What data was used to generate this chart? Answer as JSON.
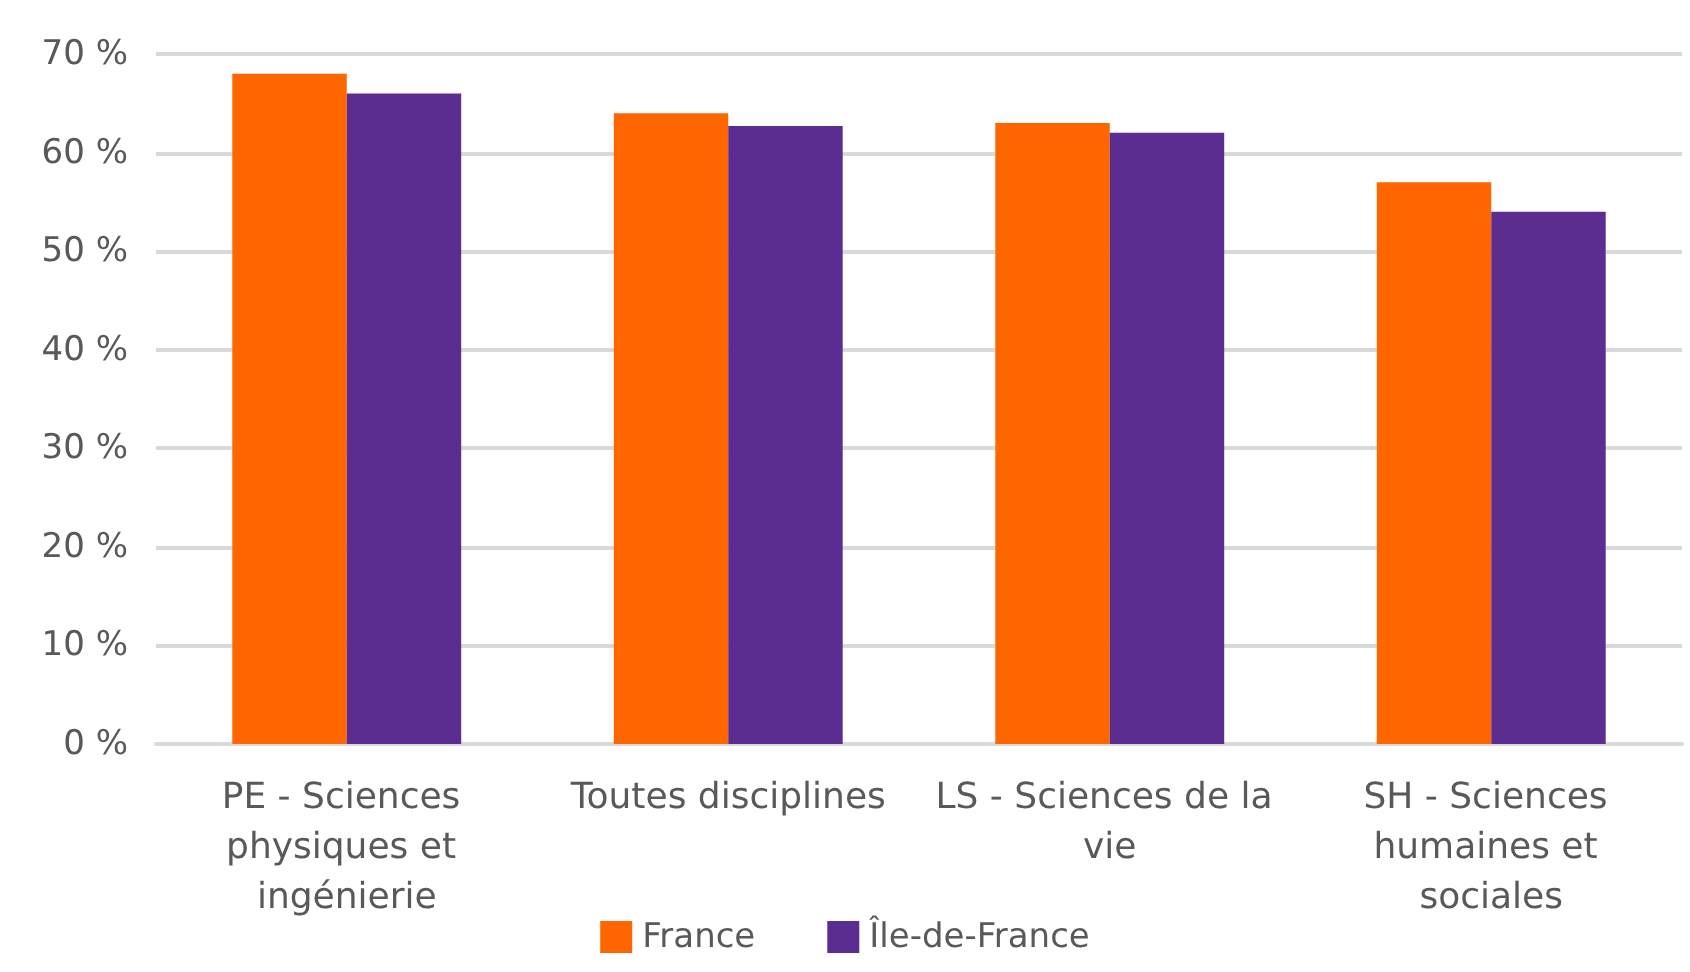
{
  "chart_data": {
    "type": "bar",
    "categories": [
      "PE - Sciences physiques et ingénierie",
      "Toutes disciplines",
      "LS - Sciences de la vie",
      "SH - Sciences humaines et sociales"
    ],
    "series": [
      {
        "name": "France",
        "color": "#ff6600",
        "values": [
          68,
          64,
          63,
          57
        ]
      },
      {
        "name": "Île-de-France",
        "color": "#5c2d91",
        "values": [
          66,
          62.7,
          62,
          54
        ]
      }
    ],
    "ylim": [
      0,
      70
    ],
    "yticks": [
      {
        "value": 0,
        "label": "0 %"
      },
      {
        "value": 10,
        "label": "10 %"
      },
      {
        "value": 20,
        "label": "20 %"
      },
      {
        "value": 30,
        "label": "30 %"
      },
      {
        "value": 40,
        "label": "40 %"
      },
      {
        "value": 50,
        "label": "50 %"
      },
      {
        "value": 60,
        "label": "60 %"
      },
      {
        "value": 70,
        "label": "70 %"
      }
    ],
    "grid": "y",
    "legend": "bottom"
  }
}
